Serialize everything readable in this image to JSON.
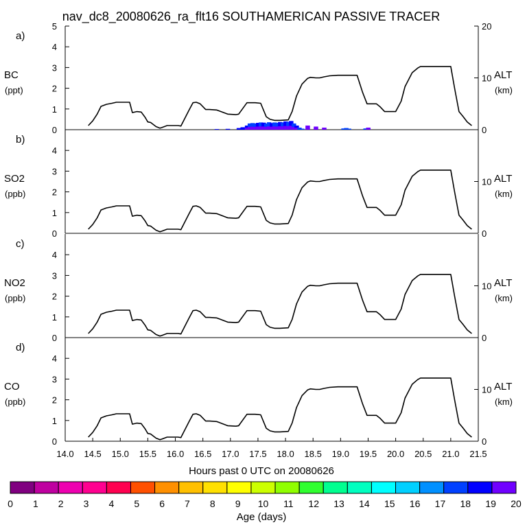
{
  "chart_data": {
    "type": "line",
    "title": "nav_dc8_20080626_ra_flt16 SOUTHAMERICAN PASSIVE TRACER",
    "xlabel": "Hours past 0 UTC on 20080626",
    "xlim": [
      14.0,
      21.5
    ],
    "x_ticks": [
      "14.0",
      "14.5",
      "15.0",
      "15.5",
      "16.0",
      "16.5",
      "17.0",
      "17.5",
      "18.0",
      "18.5",
      "19.0",
      "19.5",
      "20.0",
      "20.5",
      "21.0",
      "21.5"
    ],
    "right_axis": {
      "label": "ALT",
      "unit": "(km)",
      "ylim": [
        0,
        20
      ],
      "ticks": [
        "0",
        "10",
        "20"
      ]
    },
    "altitude_series": {
      "name": "ALT (km)",
      "x": [
        14.42,
        14.5,
        14.58,
        14.65,
        14.75,
        14.85,
        14.93,
        15.05,
        15.17,
        15.22,
        15.3,
        15.38,
        15.45,
        15.5,
        15.55,
        15.65,
        15.72,
        15.75,
        15.85,
        15.95,
        16.05,
        16.1,
        16.25,
        16.32,
        16.38,
        16.45,
        16.55,
        16.62,
        16.75,
        16.95,
        17.1,
        17.15,
        17.3,
        17.45,
        17.55,
        17.65,
        17.72,
        17.8,
        17.9,
        18.05,
        18.12,
        18.2,
        18.3,
        18.4,
        18.45,
        18.55,
        18.62,
        18.7,
        18.8,
        18.95,
        19.05,
        19.15,
        19.3,
        19.4,
        19.48,
        19.55,
        19.65,
        19.72,
        19.8,
        19.9,
        20.0,
        20.1,
        20.17,
        20.3,
        20.4,
        20.45,
        20.5,
        20.6,
        20.72,
        20.9,
        21.0,
        21.07,
        21.15,
        21.22,
        21.3,
        21.38
      ],
      "y": [
        0.8,
        1.7,
        3.0,
        4.5,
        4.9,
        5.1,
        5.3,
        5.3,
        5.3,
        3.3,
        3.5,
        3.4,
        2.4,
        1.5,
        1.4,
        0.6,
        0.3,
        0.4,
        0.8,
        0.8,
        0.8,
        0.7,
        3.8,
        5.2,
        5.3,
        5.0,
        3.9,
        3.9,
        3.8,
        3.0,
        2.9,
        3.0,
        5.2,
        5.2,
        5.1,
        2.5,
        2.0,
        1.8,
        1.8,
        1.9,
        3.5,
        6.5,
        8.8,
        9.9,
        10.1,
        10.0,
        10.0,
        10.2,
        10.4,
        10.5,
        10.5,
        10.5,
        10.5,
        7.2,
        5.0,
        5.0,
        5.0,
        4.4,
        3.5,
        3.5,
        3.5,
        5.5,
        8.3,
        11.0,
        11.9,
        12.2,
        12.2,
        12.2,
        12.2,
        12.2,
        12.2,
        8.0,
        3.5,
        2.6,
        1.5,
        0.8
      ]
    },
    "panels": [
      {
        "id": "a",
        "label": "a)",
        "species": "BC",
        "unit": "(ppt)",
        "ylim": [
          0,
          5
        ],
        "y_ticks": [
          "0",
          "1",
          "2",
          "3",
          "4",
          "5"
        ]
      },
      {
        "id": "b",
        "label": "b)",
        "species": "SO2",
        "unit": "(ppb)",
        "ylim": [
          0,
          5
        ],
        "y_ticks": [
          "0",
          "1",
          "2",
          "3",
          "4"
        ]
      },
      {
        "id": "c",
        "label": "c)",
        "species": "NO2",
        "unit": "(ppb)",
        "ylim": [
          0,
          5
        ],
        "y_ticks": [
          "0",
          "1",
          "2",
          "3",
          "4"
        ]
      },
      {
        "id": "d",
        "label": "d)",
        "species": "CO",
        "unit": "(ppb)",
        "ylim": [
          0,
          5
        ],
        "y_ticks": [
          "0",
          "1",
          "2",
          "3",
          "4"
        ]
      }
    ],
    "tracer_bars": {
      "panel": "a",
      "note": "stacked age-coloured tracer contributions (ppt)",
      "x": [
        16.75,
        16.95,
        17.15,
        17.22,
        17.3,
        17.35,
        17.4,
        17.45,
        17.5,
        17.55,
        17.6,
        17.65,
        17.7,
        17.75,
        17.8,
        17.85,
        17.9,
        17.95,
        18.0,
        18.05,
        18.1,
        18.15,
        18.2,
        18.25,
        18.3,
        18.4,
        18.55,
        18.7,
        19.05,
        19.1,
        19.15,
        19.45,
        19.5
      ],
      "y": [
        0.03,
        0.04,
        0.08,
        0.12,
        0.2,
        0.3,
        0.32,
        0.3,
        0.33,
        0.35,
        0.34,
        0.3,
        0.36,
        0.32,
        0.35,
        0.33,
        0.37,
        0.35,
        0.4,
        0.38,
        0.42,
        0.3,
        0.2,
        0.1,
        0.05,
        0.2,
        0.15,
        0.1,
        0.06,
        0.08,
        0.05,
        0.06,
        0.1
      ],
      "age_bins_days": [
        19,
        19,
        19,
        19,
        19,
        18,
        18,
        18,
        19,
        18,
        19,
        18,
        18,
        19,
        18,
        18,
        19,
        18,
        19,
        18,
        19,
        18,
        19,
        18,
        18,
        20,
        20,
        20,
        18,
        18,
        18,
        18,
        20
      ]
    },
    "colorbar": {
      "label": "Age (days)",
      "tick_labels": [
        "0",
        "1",
        "2",
        "3",
        "4",
        "5",
        "6",
        "7",
        "8",
        "9",
        "10",
        "11",
        "12",
        "13",
        "14",
        "15",
        "16",
        "17",
        "18",
        "19",
        "20"
      ],
      "colors": [
        "#800080",
        "#bf00a0",
        "#ee00b0",
        "#ff0090",
        "#ff0050",
        "#ff5000",
        "#ff9000",
        "#ffc000",
        "#ffe000",
        "#ffff00",
        "#ccff00",
        "#90ff00",
        "#30ff30",
        "#00ff90",
        "#00ffc0",
        "#00ffff",
        "#00d0ff",
        "#0090ff",
        "#0040ff",
        "#0000ff",
        "#7000ff"
      ]
    }
  }
}
